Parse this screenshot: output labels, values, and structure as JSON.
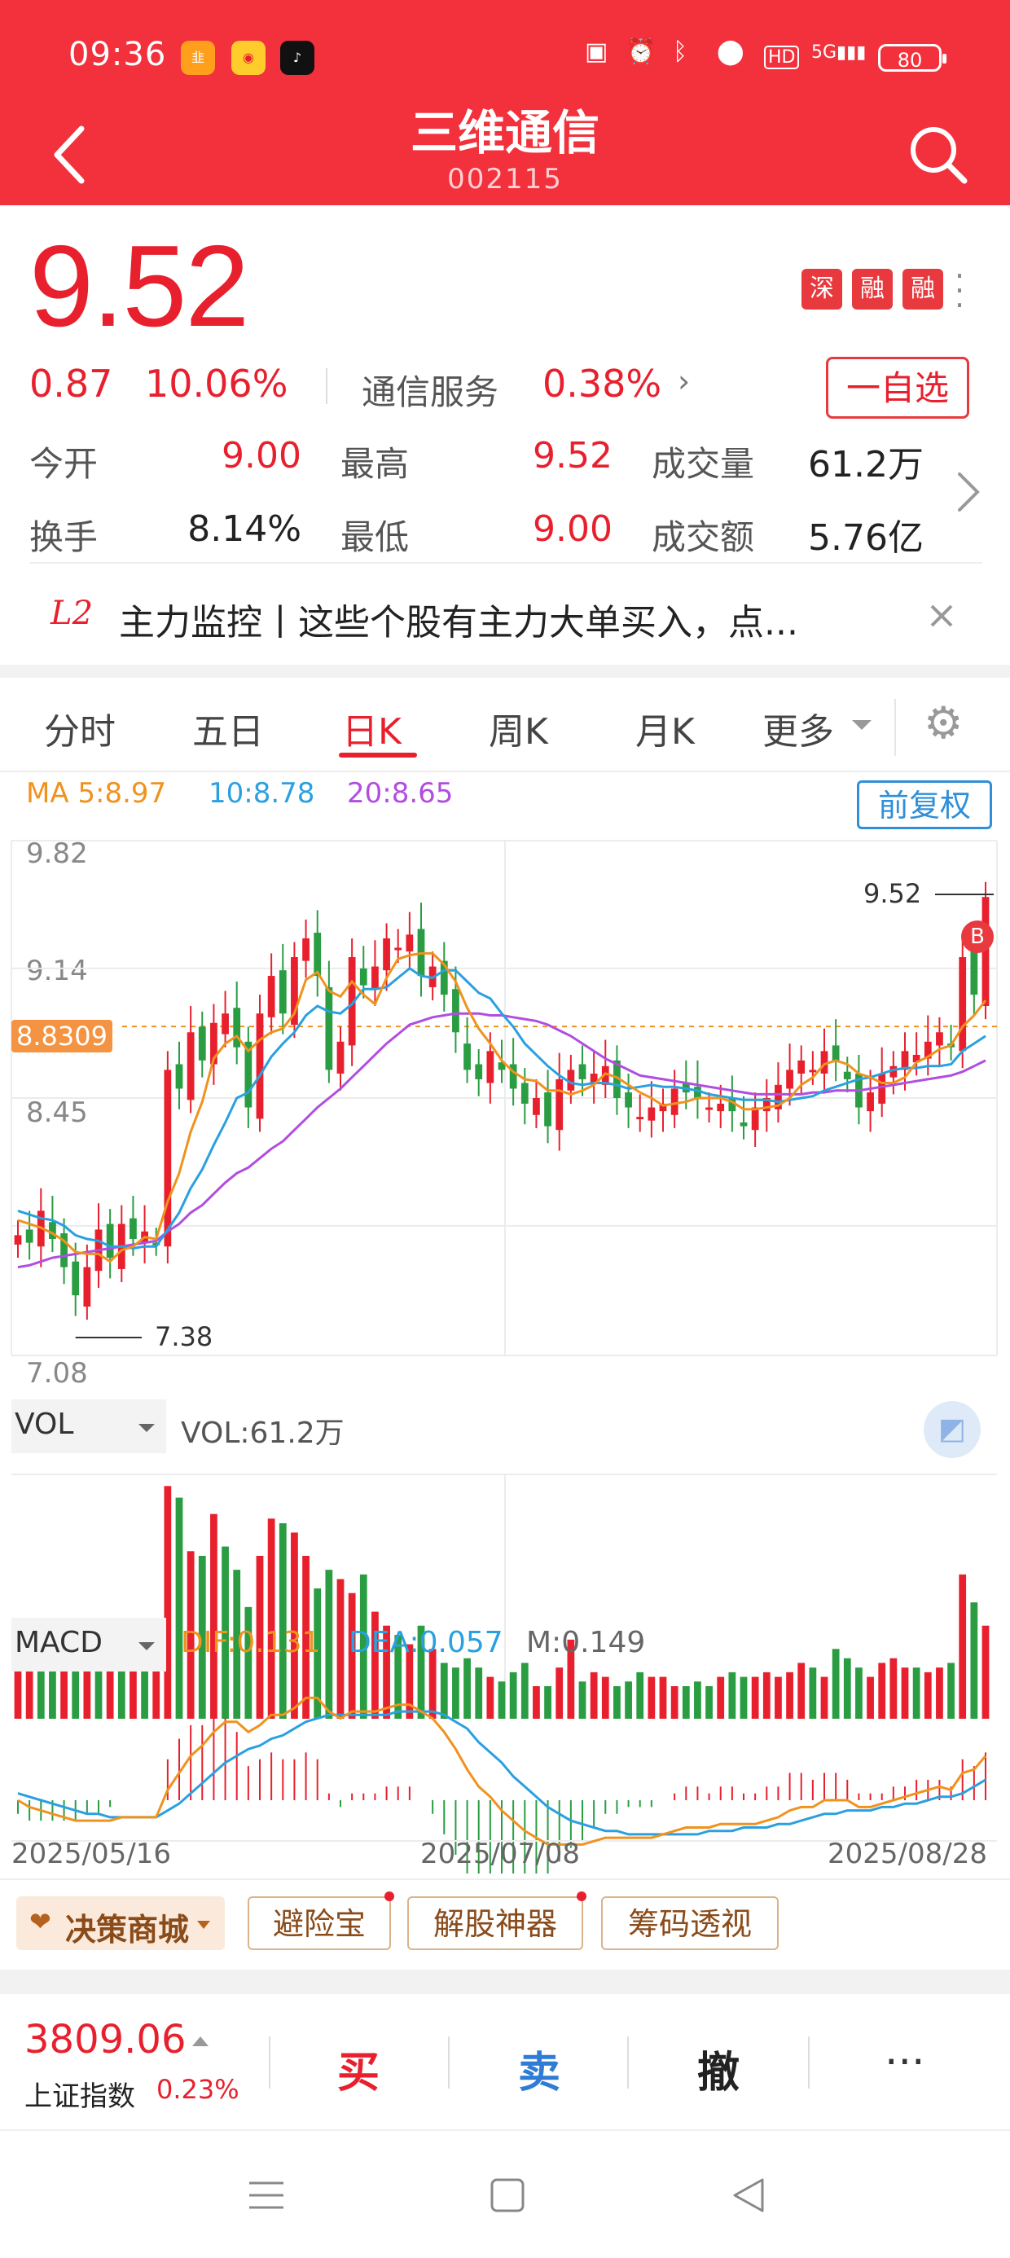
{
  "status": {
    "time": "09:36",
    "battery": "80",
    "icons": [
      "app-icon-1",
      "weibo-icon",
      "tiktok-icon",
      "nfc-icon",
      "alarm-icon",
      "bluetooth-icon",
      "location-icon",
      "hd-icon",
      "signal-5g-icon"
    ]
  },
  "header": {
    "title": "三维通信",
    "code": "002115"
  },
  "quote": {
    "price": "9.52",
    "change": "0.87",
    "change_pct": "10.06%",
    "sector": "通信服务",
    "sector_pct": "0.38%",
    "tags": [
      "深",
      "融",
      "融"
    ],
    "watch_label": "一自选",
    "rows": [
      {
        "l1": "今开",
        "v1": "9.00",
        "l2": "最高",
        "v2": "9.52",
        "l3": "成交量",
        "v3": "61.2万"
      },
      {
        "l1": "换手",
        "v1": "8.14%",
        "l2": "最低",
        "v2": "9.00",
        "l3": "成交额",
        "v3": "5.76亿"
      }
    ]
  },
  "banner": {
    "badge": "L2",
    "text": "主力监控丨这些个股有主力大单买入，点..."
  },
  "tabs": [
    "分时",
    "五日",
    "日K",
    "周K",
    "月K",
    "更多"
  ],
  "active_tab": "日K",
  "chart_data": {
    "type": "line",
    "ma_legend": {
      "ma5": "MA 5:8.97",
      "ma10": "10:8.78",
      "ma20": "20:8.65"
    },
    "adjust_label": "前复权",
    "y_ticks": [
      "9.82",
      "9.14",
      "8.45",
      "7.08"
    ],
    "ref_price": "8.8309",
    "high_label": "9.52",
    "low_label": "7.38",
    "x_labels": [
      "2025/05/16",
      "2025/07/08",
      "2025/08/28"
    ],
    "closes": [
      7.72,
      7.68,
      7.85,
      7.7,
      7.55,
      7.4,
      7.55,
      7.75,
      7.6,
      7.78,
      7.7,
      7.74,
      7.68,
      8.6,
      8.5,
      8.8,
      8.65,
      8.85,
      8.9,
      8.72,
      8.4,
      8.9,
      9.1,
      8.9,
      9.2,
      9.3,
      9.1,
      8.6,
      8.75,
      9.2,
      9.05,
      9.15,
      9.3,
      9.25,
      9.32,
      9.1,
      9.15,
      9.0,
      8.8,
      8.6,
      8.55,
      8.7,
      8.6,
      8.5,
      8.42,
      8.45,
      8.3,
      8.55,
      8.6,
      8.55,
      8.58,
      8.62,
      8.45,
      8.4,
      8.35,
      8.4,
      8.42,
      8.5,
      8.48,
      8.45,
      8.4,
      8.42,
      8.38,
      8.3,
      8.4,
      8.45,
      8.52,
      8.6,
      8.65,
      8.6,
      8.7,
      8.65,
      8.55,
      8.4,
      8.48,
      8.58,
      8.62,
      8.7,
      8.68,
      8.75,
      8.8,
      8.72,
      9.2,
      9.0,
      9.52
    ],
    "ma5": [
      7.8,
      7.78,
      7.76,
      7.73,
      7.69,
      7.63,
      7.62,
      7.62,
      7.58,
      7.64,
      7.66,
      7.71,
      7.7,
      7.9,
      8.05,
      8.27,
      8.43,
      8.66,
      8.74,
      8.78,
      8.7,
      8.76,
      8.8,
      8.82,
      8.9,
      9.08,
      9.12,
      9.02,
      8.99,
      9.07,
      9.0,
      8.95,
      9.09,
      9.19,
      9.21,
      9.22,
      9.22,
      9.16,
      9.07,
      8.93,
      8.82,
      8.74,
      8.65,
      8.59,
      8.55,
      8.54,
      8.49,
      8.49,
      8.47,
      8.49,
      8.52,
      8.58,
      8.56,
      8.52,
      8.48,
      8.45,
      8.41,
      8.42,
      8.43,
      8.45,
      8.45,
      8.45,
      8.43,
      8.39,
      8.39,
      8.4,
      8.41,
      8.45,
      8.52,
      8.56,
      8.63,
      8.65,
      8.63,
      8.58,
      8.56,
      8.53,
      8.53,
      8.56,
      8.64,
      8.67,
      8.71,
      8.73,
      8.83,
      8.89,
      8.97
    ],
    "ma10": [
      7.85,
      7.83,
      7.81,
      7.8,
      7.77,
      7.72,
      7.7,
      7.69,
      7.66,
      7.66,
      7.65,
      7.66,
      7.66,
      7.75,
      7.84,
      7.97,
      8.07,
      8.2,
      8.32,
      8.45,
      8.48,
      8.57,
      8.67,
      8.74,
      8.8,
      8.89,
      8.94,
      8.91,
      8.9,
      8.95,
      9.03,
      9.03,
      9.04,
      9.09,
      9.14,
      9.1,
      9.09,
      9.13,
      9.13,
      9.07,
      9.01,
      8.98,
      8.9,
      8.83,
      8.74,
      8.68,
      8.62,
      8.57,
      8.53,
      8.52,
      8.53,
      8.53,
      8.52,
      8.5,
      8.51,
      8.52,
      8.51,
      8.51,
      8.5,
      8.49,
      8.47,
      8.46,
      8.45,
      8.44,
      8.44,
      8.44,
      8.43,
      8.44,
      8.45,
      8.46,
      8.49,
      8.51,
      8.53,
      8.55,
      8.56,
      8.58,
      8.6,
      8.61,
      8.61,
      8.62,
      8.62,
      8.63,
      8.7,
      8.74,
      8.78
    ],
    "ma20": [
      7.55,
      7.56,
      7.58,
      7.6,
      7.61,
      7.62,
      7.63,
      7.64,
      7.65,
      7.66,
      7.67,
      7.68,
      7.69,
      7.74,
      7.78,
      7.84,
      7.88,
      7.94,
      8.0,
      8.05,
      8.08,
      8.13,
      8.18,
      8.22,
      8.28,
      8.34,
      8.4,
      8.45,
      8.5,
      8.56,
      8.62,
      8.68,
      8.74,
      8.79,
      8.84,
      8.86,
      8.88,
      8.89,
      8.9,
      8.9,
      8.9,
      8.89,
      8.89,
      8.88,
      8.87,
      8.86,
      8.84,
      8.81,
      8.78,
      8.74,
      8.7,
      8.66,
      8.63,
      8.6,
      8.57,
      8.56,
      8.55,
      8.54,
      8.53,
      8.52,
      8.51,
      8.5,
      8.49,
      8.48,
      8.47,
      8.47,
      8.47,
      8.47,
      8.47,
      8.48,
      8.48,
      8.49,
      8.49,
      8.49,
      8.5,
      8.51,
      8.52,
      8.53,
      8.54,
      8.55,
      8.56,
      8.57,
      8.59,
      8.62,
      8.65
    ],
    "vol_label": "VOL",
    "vol_value": "VOL:61.2万",
    "volumes": [
      30,
      28,
      35,
      32,
      30,
      28,
      34,
      30,
      40,
      36,
      32,
      34,
      30,
      100,
      95,
      72,
      70,
      88,
      74,
      64,
      48,
      70,
      86,
      84,
      80,
      70,
      56,
      64,
      60,
      54,
      62,
      46,
      40,
      36,
      32,
      40,
      30,
      24,
      22,
      26,
      22,
      18,
      16,
      20,
      24,
      14,
      14,
      22,
      34,
      16,
      20,
      18,
      14,
      16,
      20,
      18,
      18,
      14,
      14,
      16,
      14,
      18,
      20,
      18,
      18,
      20,
      18,
      20,
      24,
      22,
      18,
      30,
      26,
      22,
      18,
      24,
      26,
      22,
      22,
      20,
      22,
      24,
      62,
      50,
      40
    ],
    "vol_colors": [
      "r",
      "r",
      "g",
      "g",
      "r",
      "g",
      "r",
      "g",
      "r",
      "g",
      "r",
      "g",
      "r",
      "r",
      "g",
      "r",
      "g",
      "r",
      "g",
      "g",
      "g",
      "r",
      "r",
      "g",
      "r",
      "r",
      "g",
      "g",
      "r",
      "r",
      "g",
      "r",
      "r",
      "g",
      "r",
      "g",
      "r",
      "g",
      "g",
      "g",
      "g",
      "r",
      "g",
      "g",
      "g",
      "r",
      "g",
      "r",
      "r",
      "g",
      "r",
      "r",
      "g",
      "g",
      "g",
      "r",
      "r",
      "r",
      "g",
      "g",
      "g",
      "r",
      "g",
      "g",
      "r",
      "r",
      "r",
      "r",
      "r",
      "g",
      "r",
      "g",
      "g",
      "g",
      "r",
      "r",
      "r",
      "r",
      "g",
      "r",
      "r",
      "g",
      "r",
      "g",
      "r"
    ],
    "macd_label": "MACD",
    "dif": "DIF:0.131",
    "dea": "DEA:0.057",
    "m": "M:0.149",
    "macd_dif": [
      0.0,
      -0.02,
      -0.03,
      -0.04,
      -0.05,
      -0.06,
      -0.06,
      -0.06,
      -0.06,
      -0.05,
      -0.05,
      -0.05,
      -0.05,
      0.03,
      0.08,
      0.13,
      0.16,
      0.2,
      0.23,
      0.23,
      0.2,
      0.22,
      0.25,
      0.25,
      0.27,
      0.3,
      0.3,
      0.26,
      0.24,
      0.26,
      0.26,
      0.26,
      0.27,
      0.28,
      0.28,
      0.26,
      0.24,
      0.2,
      0.15,
      0.09,
      0.04,
      0.01,
      -0.03,
      -0.06,
      -0.09,
      -0.11,
      -0.13,
      -0.13,
      -0.13,
      -0.13,
      -0.12,
      -0.11,
      -0.11,
      -0.11,
      -0.11,
      -0.11,
      -0.1,
      -0.09,
      -0.08,
      -0.08,
      -0.08,
      -0.07,
      -0.07,
      -0.07,
      -0.07,
      -0.06,
      -0.05,
      -0.03,
      -0.02,
      -0.02,
      0.0,
      0.0,
      0.0,
      -0.02,
      -0.02,
      -0.01,
      0.0,
      0.01,
      0.02,
      0.03,
      0.04,
      0.03,
      0.08,
      0.09,
      0.13
    ],
    "macd_dea": [
      0.02,
      0.01,
      0.0,
      -0.01,
      -0.02,
      -0.03,
      -0.04,
      -0.04,
      -0.05,
      -0.05,
      -0.05,
      -0.05,
      -0.05,
      -0.03,
      -0.01,
      0.02,
      0.05,
      0.08,
      0.11,
      0.13,
      0.15,
      0.16,
      0.18,
      0.19,
      0.21,
      0.23,
      0.24,
      0.25,
      0.25,
      0.25,
      0.25,
      0.25,
      0.25,
      0.26,
      0.26,
      0.26,
      0.26,
      0.25,
      0.23,
      0.21,
      0.17,
      0.14,
      0.11,
      0.07,
      0.04,
      0.01,
      -0.02,
      -0.04,
      -0.06,
      -0.07,
      -0.08,
      -0.09,
      -0.09,
      -0.1,
      -0.1,
      -0.1,
      -0.1,
      -0.1,
      -0.1,
      -0.1,
      -0.09,
      -0.09,
      -0.09,
      -0.08,
      -0.08,
      -0.08,
      -0.07,
      -0.07,
      -0.06,
      -0.05,
      -0.04,
      -0.04,
      -0.03,
      -0.03,
      -0.03,
      -0.02,
      -0.02,
      -0.01,
      -0.01,
      0.0,
      0.01,
      0.01,
      0.02,
      0.04,
      0.06
    ]
  },
  "tools": {
    "mall": "决策商城",
    "items": [
      "避险宝",
      "解股神器",
      "筹码透视"
    ]
  },
  "bottom": {
    "index_value": "3809.06",
    "index_name": "上证指数",
    "index_pct": "0.23%",
    "buy": "买",
    "sell": "卖",
    "cancel": "撤",
    "more": "···"
  }
}
